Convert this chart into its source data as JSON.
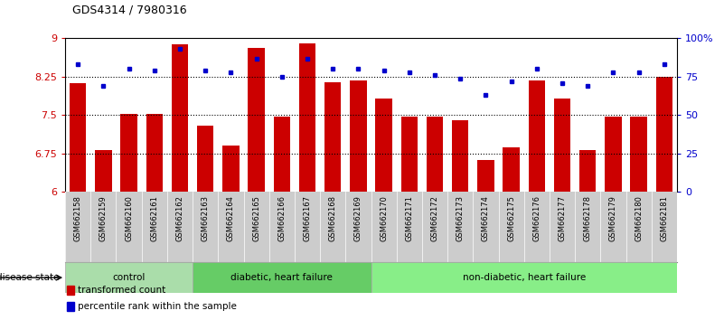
{
  "title": "GDS4314 / 7980316",
  "samples": [
    "GSM662158",
    "GSM662159",
    "GSM662160",
    "GSM662161",
    "GSM662162",
    "GSM662163",
    "GSM662164",
    "GSM662165",
    "GSM662166",
    "GSM662167",
    "GSM662168",
    "GSM662169",
    "GSM662170",
    "GSM662171",
    "GSM662172",
    "GSM662173",
    "GSM662174",
    "GSM662175",
    "GSM662176",
    "GSM662177",
    "GSM662178",
    "GSM662179",
    "GSM662180",
    "GSM662181"
  ],
  "bar_values": [
    8.12,
    6.82,
    7.52,
    7.52,
    8.88,
    7.3,
    6.9,
    8.82,
    7.47,
    8.91,
    8.15,
    8.18,
    7.83,
    7.47,
    7.47,
    7.4,
    6.62,
    6.88,
    8.18,
    7.83,
    6.82,
    7.47,
    7.47,
    8.25
  ],
  "percentile_values": [
    83,
    69,
    80,
    79,
    93,
    79,
    78,
    87,
    75,
    87,
    80,
    80,
    79,
    78,
    76,
    74,
    63,
    72,
    80,
    71,
    69,
    78,
    78,
    83
  ],
  "bar_color": "#cc0000",
  "percentile_color": "#0000cc",
  "groups": [
    {
      "label": "control",
      "start": 0,
      "end": 4,
      "color": "#aaddaa"
    },
    {
      "label": "diabetic, heart failure",
      "start": 5,
      "end": 11,
      "color": "#66cc66"
    },
    {
      "label": "non-diabetic, heart failure",
      "start": 12,
      "end": 23,
      "color": "#88ee88"
    }
  ],
  "ylim_left": [
    6.0,
    9.0
  ],
  "ylim_right": [
    0,
    100
  ],
  "yticks_left": [
    6.0,
    6.75,
    7.5,
    8.25,
    9.0
  ],
  "ytick_labels_left": [
    "6",
    "6.75",
    "7.5",
    "8.25",
    "9"
  ],
  "yticks_right": [
    0,
    25,
    50,
    75,
    100
  ],
  "ytick_labels_right": [
    "0",
    "25",
    "50",
    "75",
    "100%"
  ],
  "hlines": [
    6.75,
    7.5,
    8.25
  ],
  "legend_items": [
    {
      "label": "transformed count",
      "color": "#cc0000"
    },
    {
      "label": "percentile rank within the sample",
      "color": "#0000cc"
    }
  ],
  "disease_state_label": "disease state",
  "xlabel_bg_color": "#cccccc",
  "group_border_color": "#888888"
}
